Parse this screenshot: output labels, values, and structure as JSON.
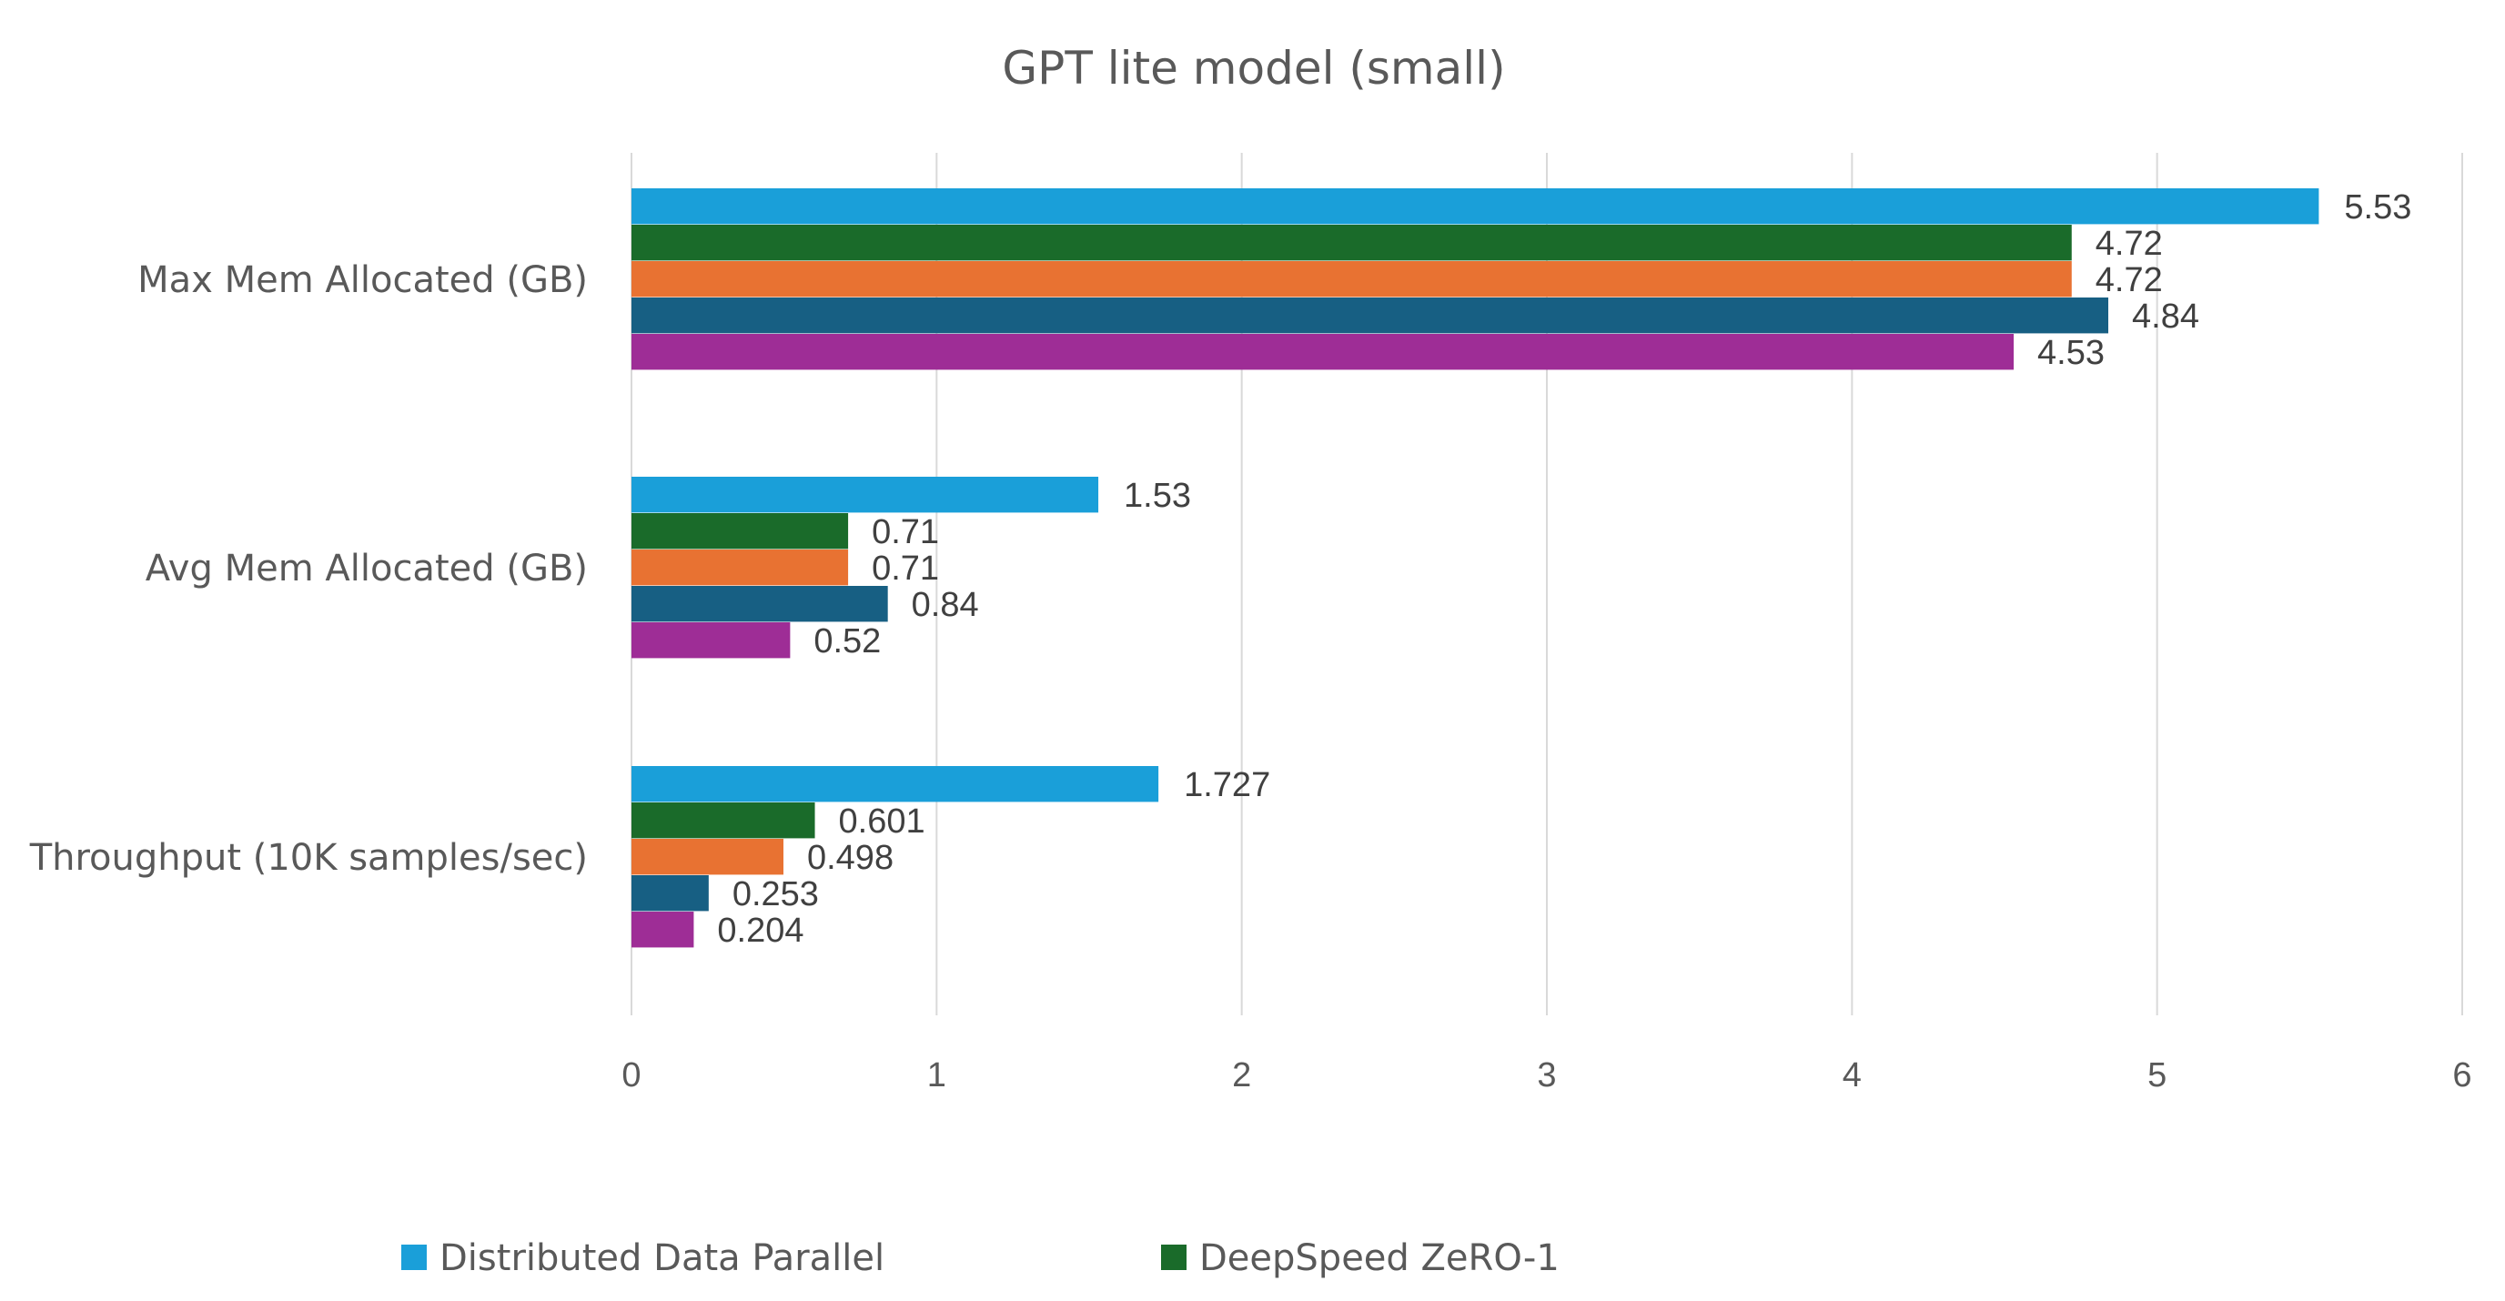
{
  "chart_data": {
    "type": "bar",
    "orientation": "horizontal",
    "title": "GPT lite model (small)",
    "categories": [
      "Max Mem Allocated (GB)",
      "Avg Mem Allocated (GB)",
      "Throughput (10K samples/sec)"
    ],
    "series": [
      {
        "name": "Distributed Data Parallel",
        "color": "#1a9fd9",
        "values": [
          5.53,
          1.53,
          1.727
        ],
        "labels": [
          "5.53",
          "1.53",
          "1.727"
        ]
      },
      {
        "name": "DeepSpeed ZeRO-1",
        "color": "#1a6b2a",
        "values": [
          4.72,
          0.71,
          0.601
        ],
        "labels": [
          "4.72",
          "0.71",
          "0.601"
        ]
      },
      {
        "color": "#e87232",
        "values": [
          4.72,
          0.71,
          0.498
        ],
        "labels": [
          "4.72",
          "0.71",
          "0.498"
        ]
      },
      {
        "color": "#175f83",
        "values": [
          4.84,
          0.84,
          0.253
        ],
        "labels": [
          "4.84",
          "0.84",
          "0.253"
        ]
      },
      {
        "color": "#9e2d96",
        "values": [
          4.53,
          0.52,
          0.204
        ],
        "labels": [
          "4.53",
          "0.52",
          "0.204"
        ]
      }
    ],
    "xlim": [
      0,
      6
    ],
    "xticks": [
      "0",
      "1",
      "2",
      "3",
      "4",
      "5",
      "6"
    ],
    "grid": "vertical",
    "legend_position": "bottom",
    "legend_entries": [
      "Distributed Data Parallel",
      "DeepSpeed ZeRO-1"
    ]
  }
}
